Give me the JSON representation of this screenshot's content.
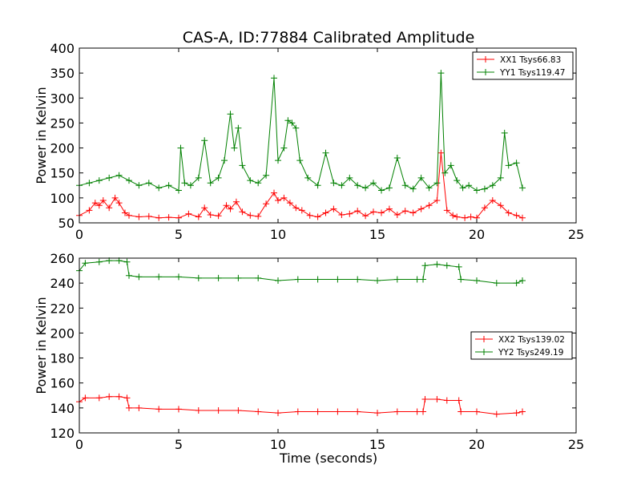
{
  "title": "CAS-A, ID:77884 Calibrated Amplitude",
  "colors": {
    "xx": "#ff0000",
    "yy": "#008000"
  },
  "chart_data": [
    {
      "type": "line",
      "title": "CAS-A, ID:77884 Calibrated Amplitude",
      "xlabel": "",
      "ylabel": "Power in Kelvin",
      "xlim": [
        0,
        25
      ],
      "ylim": [
        50,
        400
      ],
      "xticks": [
        "0",
        "5",
        "10",
        "15",
        "20",
        "25"
      ],
      "yticks": [
        "50",
        "100",
        "150",
        "200",
        "250",
        "300",
        "350",
        "400"
      ],
      "grid": false,
      "legend_position": "top-right",
      "marker": "plus",
      "series": [
        {
          "name": "XX1 Tsys66.83",
          "color": "#ff0000",
          "x": [
            0,
            0.5,
            0.8,
            1,
            1.2,
            1.5,
            1.8,
            2,
            2.3,
            2.5,
            3,
            3.5,
            4,
            4.5,
            5,
            5.5,
            6,
            6.3,
            6.6,
            7,
            7.4,
            7.6,
            7.9,
            8.2,
            8.6,
            9,
            9.4,
            9.8,
            10,
            10.3,
            10.6,
            10.9,
            11.2,
            11.6,
            12,
            12.4,
            12.8,
            13.2,
            13.6,
            14,
            14.4,
            14.8,
            15.2,
            15.6,
            16,
            16.4,
            16.8,
            17.2,
            17.6,
            18,
            18.2,
            18.5,
            18.8,
            19,
            19.4,
            19.7,
            20,
            20.4,
            20.8,
            21.2,
            21.6,
            22,
            22.3
          ],
          "values": [
            65,
            75,
            90,
            85,
            95,
            80,
            100,
            90,
            70,
            65,
            62,
            63,
            60,
            61,
            60,
            68,
            62,
            80,
            66,
            64,
            85,
            78,
            92,
            72,
            65,
            63,
            88,
            110,
            95,
            100,
            90,
            80,
            75,
            65,
            62,
            70,
            78,
            66,
            68,
            74,
            64,
            72,
            70,
            78,
            66,
            74,
            70,
            78,
            85,
            95,
            190,
            75,
            65,
            62,
            60,
            62,
            60,
            80,
            95,
            85,
            70,
            65,
            60
          ]
        },
        {
          "name": "YY1 Tsys119.47",
          "color": "#008000",
          "x": [
            0,
            0.5,
            1,
            1.5,
            2,
            2.5,
            3,
            3.5,
            4,
            4.5,
            5,
            5.1,
            5.3,
            5.6,
            6,
            6.3,
            6.6,
            7,
            7.3,
            7.6,
            7.8,
            8,
            8.2,
            8.6,
            9,
            9.4,
            9.8,
            10,
            10.3,
            10.5,
            10.7,
            10.9,
            11.1,
            11.5,
            12,
            12.4,
            12.8,
            13.2,
            13.6,
            14,
            14.4,
            14.8,
            15.2,
            15.6,
            16,
            16.4,
            16.8,
            17.2,
            17.6,
            18,
            18.2,
            18.4,
            18.7,
            19,
            19.3,
            19.6,
            20,
            20.4,
            20.8,
            21.2,
            21.4,
            21.6,
            22,
            22.3
          ],
          "values": [
            125,
            130,
            135,
            140,
            145,
            135,
            125,
            130,
            120,
            125,
            115,
            200,
            130,
            125,
            140,
            215,
            130,
            140,
            175,
            268,
            200,
            240,
            165,
            135,
            130,
            145,
            340,
            175,
            200,
            255,
            250,
            240,
            175,
            140,
            125,
            190,
            130,
            125,
            140,
            125,
            120,
            130,
            115,
            120,
            180,
            125,
            118,
            140,
            120,
            130,
            350,
            150,
            165,
            135,
            120,
            125,
            115,
            118,
            125,
            140,
            230,
            165,
            170,
            120
          ]
        }
      ]
    },
    {
      "type": "line",
      "title": "",
      "xlabel": "Time (seconds)",
      "ylabel": "Power in Kelvin",
      "xlim": [
        0,
        25
      ],
      "ylim": [
        120,
        260
      ],
      "xticks": [
        "0",
        "5",
        "10",
        "15",
        "20",
        "25"
      ],
      "yticks": [
        "120",
        "140",
        "160",
        "180",
        "200",
        "220",
        "240",
        "260"
      ],
      "grid": false,
      "legend_position": "center-right",
      "marker": "plus",
      "series": [
        {
          "name": "XX2 Tsys139.02",
          "color": "#ff0000",
          "x": [
            0,
            0.3,
            1,
            1.5,
            2,
            2.4,
            2.5,
            3,
            4,
            5,
            6,
            7,
            8,
            9,
            10,
            11,
            12,
            13,
            14,
            15,
            16,
            17,
            17.3,
            17.4,
            18,
            18.5,
            19.1,
            19.2,
            20,
            21,
            22,
            22.3
          ],
          "values": [
            145,
            148,
            148,
            149,
            149,
            148,
            140,
            140,
            139,
            139,
            138,
            138,
            138,
            137,
            136,
            137,
            137,
            137,
            137,
            136,
            137,
            137,
            137,
            147,
            147,
            146,
            146,
            137,
            137,
            135,
            136,
            137
          ]
        },
        {
          "name": "YY2 Tsys249.19",
          "color": "#008000",
          "x": [
            0,
            0.3,
            1,
            1.5,
            2,
            2.4,
            2.5,
            3,
            4,
            5,
            6,
            7,
            8,
            9,
            10,
            11,
            12,
            13,
            14,
            15,
            16,
            17,
            17.3,
            17.4,
            18,
            18.5,
            19.1,
            19.2,
            20,
            21,
            22,
            22.3
          ],
          "values": [
            250,
            256,
            257,
            258,
            258,
            257,
            246,
            245,
            245,
            245,
            244,
            244,
            244,
            244,
            242,
            243,
            243,
            243,
            243,
            242,
            243,
            243,
            243,
            254,
            255,
            254,
            253,
            243,
            242,
            240,
            240,
            242
          ]
        }
      ]
    }
  ]
}
